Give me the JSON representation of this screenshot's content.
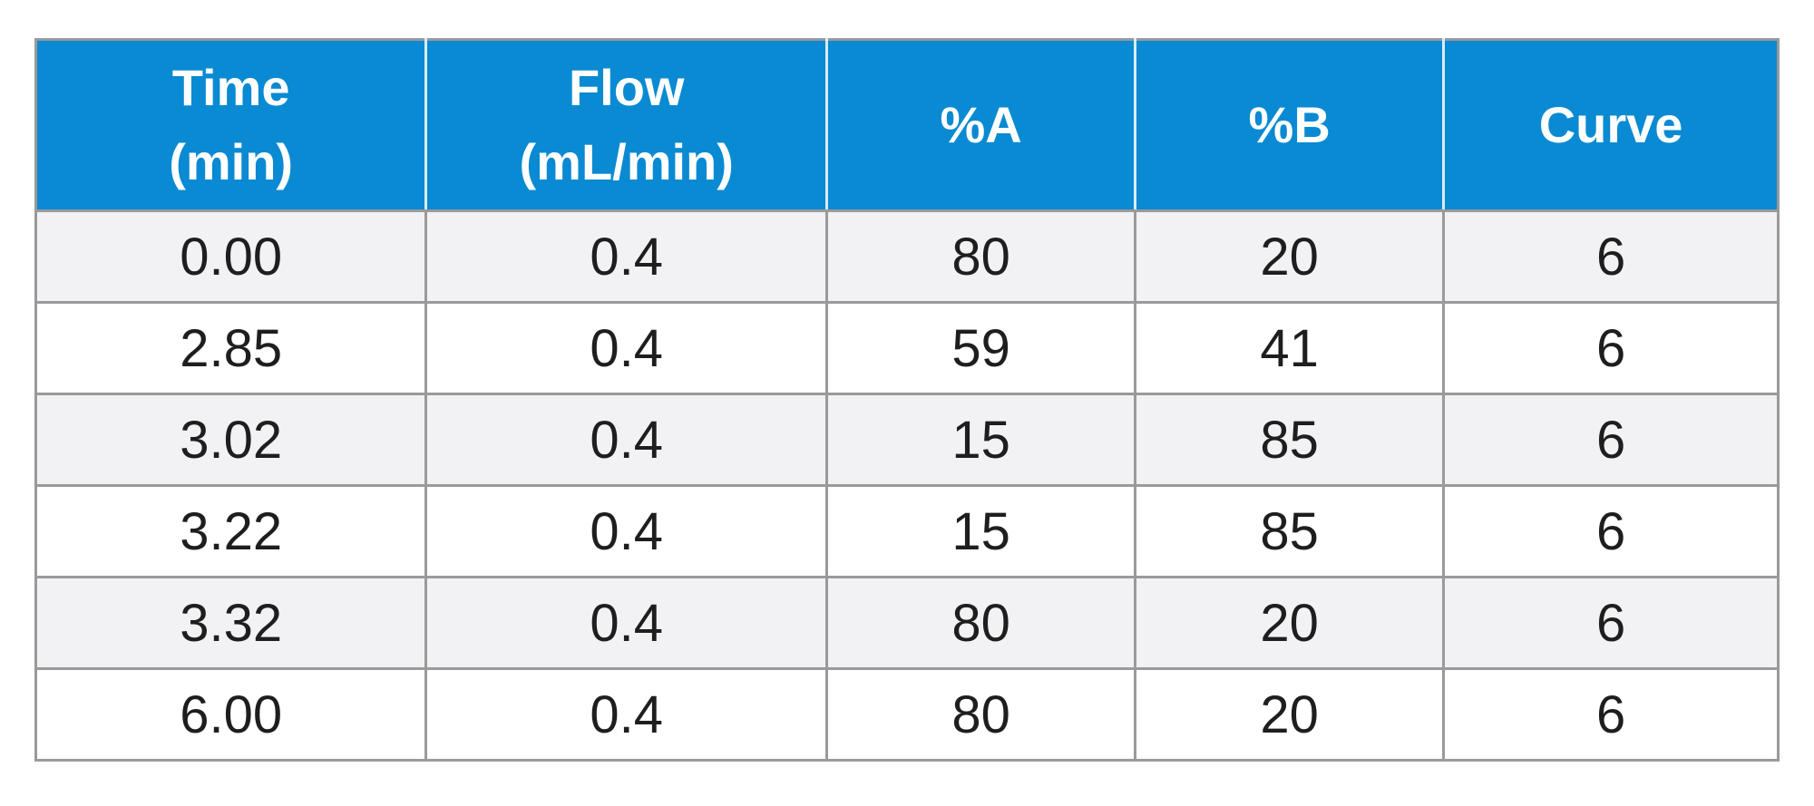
{
  "table": {
    "headers": [
      [
        "Time",
        "(min)"
      ],
      [
        "Flow",
        "(mL/min)"
      ],
      [
        "%A"
      ],
      [
        "%B"
      ],
      [
        "Curve"
      ]
    ],
    "rows": [
      [
        "0.00",
        "0.4",
        "80",
        "20",
        "6"
      ],
      [
        "2.85",
        "0.4",
        "59",
        "41",
        "6"
      ],
      [
        "3.02",
        "0.4",
        "15",
        "85",
        "6"
      ],
      [
        "3.22",
        "0.4",
        "15",
        "85",
        "6"
      ],
      [
        "3.32",
        "0.4",
        "80",
        "20",
        "6"
      ],
      [
        "6.00",
        "0.4",
        "80",
        "20",
        "6"
      ]
    ],
    "colors": {
      "header_background": "#0a8ad2",
      "header_text": "#ffffff",
      "stripe_background": "#f2f2f4",
      "border": "#9a9a9a"
    }
  }
}
